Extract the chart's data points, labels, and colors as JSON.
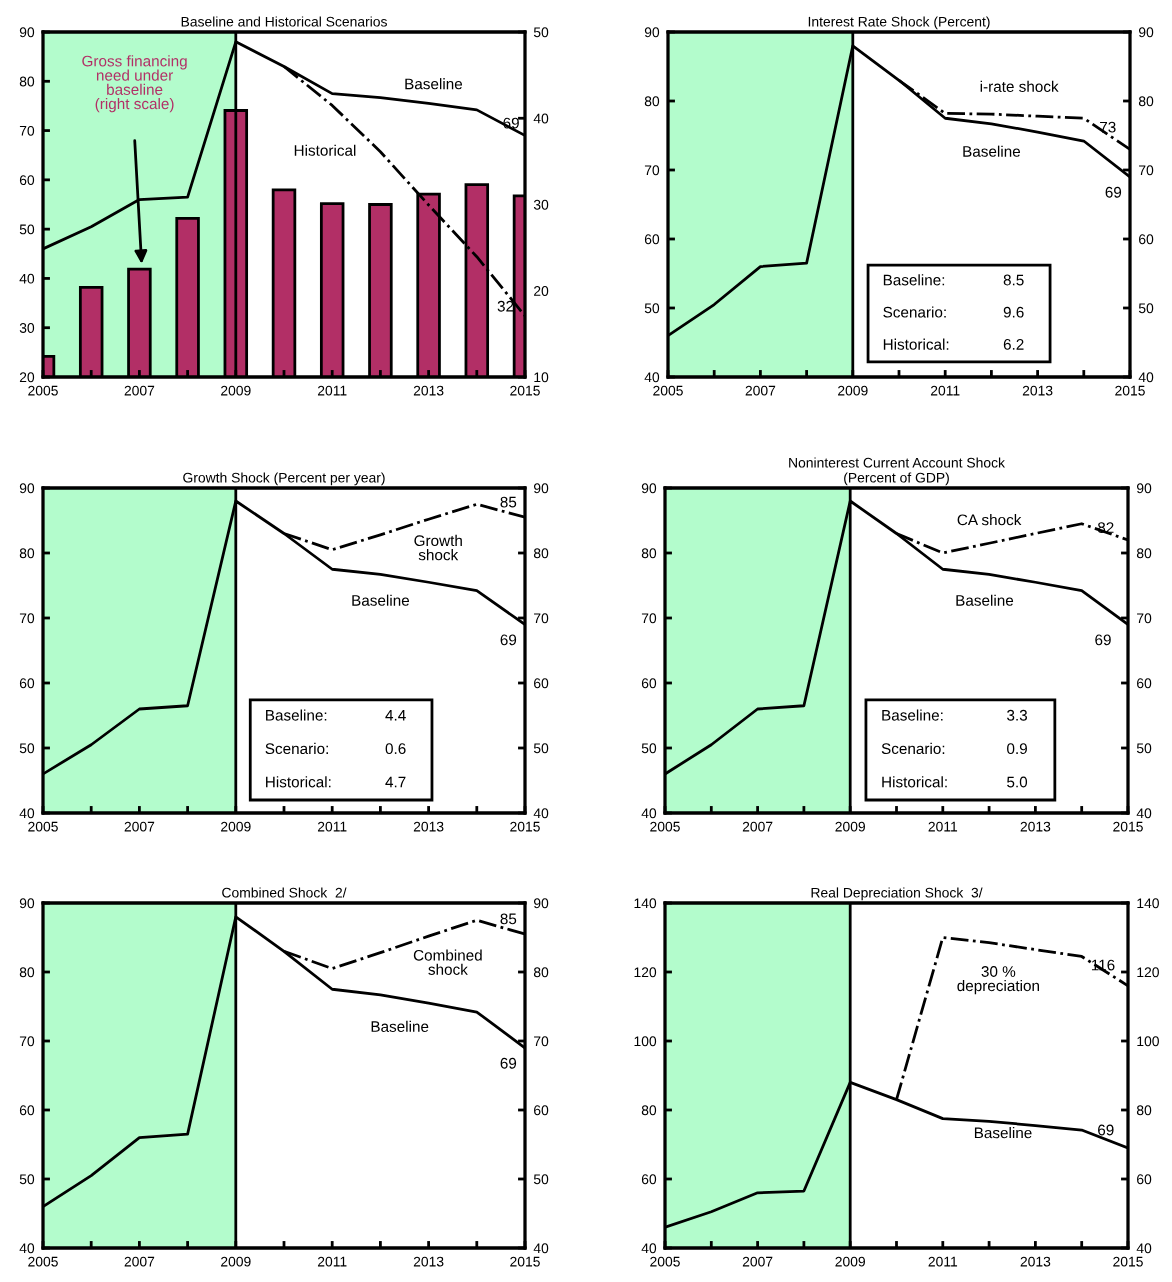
{
  "chart_data": [
    {
      "type": "line",
      "title": "Baseline and Historical Scenarios",
      "x": [
        2005,
        2006,
        2007,
        2008,
        2009,
        2010,
        2011,
        2012,
        2013,
        2014,
        2015
      ],
      "xlim": [
        2005,
        2015
      ],
      "xticks": [
        2005,
        {
          "value": 2006,
          "label": null
        },
        2007,
        {
          "value": 2008,
          "label": null
        },
        2009,
        {
          "value": 2010,
          "label": null
        },
        2011,
        {
          "value": 2012,
          "label": null
        },
        2013,
        {
          "value": 2014,
          "label": null
        },
        2015
      ],
      "ylim": [
        20,
        90
      ],
      "yticks": [
        20,
        30,
        40,
        50,
        60,
        70,
        80,
        90
      ],
      "y2lim": [
        10,
        50
      ],
      "y2ticks": [
        10,
        20,
        30,
        40,
        50
      ],
      "legend": false,
      "grid": false,
      "bands": [
        {
          "axis": "x",
          "from": 2005,
          "to": 2009,
          "color": "#b3fccc"
        }
      ],
      "ref_lines": [
        {
          "axis": "x",
          "value": 2009,
          "color": "#000000"
        }
      ],
      "series": [
        {
          "type": "bar",
          "axis": "y2",
          "name": "Gross financing\nneed under\nbaseline\n(right scale)",
          "color": "#b22f66",
          "values": [
            12.4,
            20.4,
            22.5,
            28.4,
            40.9,
            31.7,
            30.1,
            30.0,
            31.2,
            32.3,
            31.0
          ]
        },
        {
          "name": "Baseline",
          "color": "#000000",
          "line_style": "solid",
          "values": [
            46,
            50.5,
            56,
            56.5,
            88,
            83,
            77.5,
            76.7,
            75.5,
            74.2,
            69
          ],
          "value_labels": [
            null,
            null,
            null,
            null,
            null,
            null,
            null,
            null,
            null,
            null,
            "69"
          ]
        },
        {
          "name": "Historical",
          "color": "#000000",
          "line_style": "dashdot",
          "x": [
            2010,
            2011,
            2012,
            2013,
            2014,
            2015
          ],
          "values": [
            83,
            75.1,
            65.7,
            54.9,
            44.4,
            32.4
          ],
          "value_labels": [
            null,
            null,
            null,
            null,
            null,
            "32"
          ]
        }
      ]
    },
    {
      "type": "line",
      "title": "Interest Rate Shock (Percent)",
      "x": [
        2005,
        2006,
        2007,
        2008,
        2009,
        2010,
        2011,
        2012,
        2013,
        2014,
        2015
      ],
      "xlim": [
        2005,
        2015
      ],
      "xticks": [
        2005,
        {
          "value": 2006,
          "label": null
        },
        2007,
        {
          "value": 2008,
          "label": null
        },
        2009,
        {
          "value": 2010,
          "label": null
        },
        2011,
        {
          "value": 2012,
          "label": null
        },
        2013,
        {
          "value": 2014,
          "label": null
        },
        2015
      ],
      "ylim": [
        40,
        90
      ],
      "yticks": [
        40,
        50,
        60,
        70,
        80,
        90
      ],
      "y2lim": [
        40,
        90
      ],
      "y2ticks": [
        40,
        50,
        60,
        70,
        80,
        90
      ],
      "legend": false,
      "grid": false,
      "bands": [
        {
          "axis": "x",
          "from": 2005,
          "to": 2009,
          "color": "#b3fccc"
        }
      ],
      "ref_lines": [
        {
          "axis": "x",
          "value": 2009,
          "color": "#000000"
        }
      ],
      "annotations": [
        "Baseline:",
        "8.5",
        "Scenario:",
        "9.6",
        "Historical:",
        "6.2"
      ],
      "series": [
        {
          "name": "Baseline",
          "color": "#000000",
          "line_style": "solid",
          "values": [
            46,
            50.5,
            56,
            56.5,
            88,
            83,
            77.5,
            76.7,
            75.5,
            74.2,
            69
          ],
          "value_labels": [
            null,
            null,
            null,
            null,
            null,
            null,
            null,
            null,
            null,
            null,
            "69"
          ]
        },
        {
          "name": "i-rate shock",
          "color": "#000000",
          "line_style": "dashdot",
          "x": [
            2010,
            2011,
            2012,
            2013,
            2014,
            2015
          ],
          "values": [
            83,
            78.2,
            78.1,
            77.8,
            77.5,
            73
          ],
          "value_labels": [
            null,
            null,
            null,
            null,
            null,
            "73"
          ]
        }
      ]
    },
    {
      "type": "line",
      "title": "Growth Shock (Percent per year)",
      "x": [
        2005,
        2006,
        2007,
        2008,
        2009,
        2010,
        2011,
        2012,
        2013,
        2014,
        2015
      ],
      "xlim": [
        2005,
        2015
      ],
      "xticks": [
        2005,
        {
          "value": 2006,
          "label": null
        },
        2007,
        {
          "value": 2008,
          "label": null
        },
        2009,
        {
          "value": 2010,
          "label": null
        },
        2011,
        {
          "value": 2012,
          "label": null
        },
        2013,
        {
          "value": 2014,
          "label": null
        },
        2015
      ],
      "ylim": [
        40,
        90
      ],
      "yticks": [
        40,
        50,
        60,
        70,
        80,
        90
      ],
      "y2lim": [
        40,
        90
      ],
      "y2ticks": [
        40,
        50,
        60,
        70,
        80,
        90
      ],
      "legend": false,
      "grid": false,
      "bands": [
        {
          "axis": "x",
          "from": 2005,
          "to": 2009,
          "color": "#b3fccc"
        }
      ],
      "ref_lines": [
        {
          "axis": "x",
          "value": 2009,
          "color": "#000000"
        }
      ],
      "annotations": [
        "Baseline:",
        "4.4",
        "Scenario:",
        "0.6",
        "Historical:",
        "4.7"
      ],
      "series": [
        {
          "name": "Baseline",
          "color": "#000000",
          "line_style": "solid",
          "values": [
            46,
            50.5,
            56,
            56.5,
            88,
            83,
            77.5,
            76.7,
            75.5,
            74.2,
            69
          ],
          "value_labels": [
            null,
            null,
            null,
            null,
            null,
            null,
            null,
            null,
            null,
            null,
            "69"
          ]
        },
        {
          "name": "Growth\nshock",
          "color": "#000000",
          "line_style": "dashdot",
          "x": [
            2010,
            2011,
            2012,
            2013,
            2014,
            2015
          ],
          "values": [
            83,
            80.5,
            82.8,
            85.2,
            87.5,
            85.5
          ],
          "value_labels": [
            null,
            null,
            null,
            null,
            null,
            "85"
          ]
        }
      ]
    },
    {
      "type": "line",
      "title": "Noninterest Current Account Shock\n(Percent of GDP)",
      "x": [
        2005,
        2006,
        2007,
        2008,
        2009,
        2010,
        2011,
        2012,
        2013,
        2014,
        2015
      ],
      "xlim": [
        2005,
        2015
      ],
      "xticks": [
        2005,
        {
          "value": 2006,
          "label": null
        },
        2007,
        {
          "value": 2008,
          "label": null
        },
        2009,
        {
          "value": 2010,
          "label": null
        },
        2011,
        {
          "value": 2012,
          "label": null
        },
        2013,
        {
          "value": 2014,
          "label": null
        },
        2015
      ],
      "ylim": [
        40,
        90
      ],
      "yticks": [
        40,
        50,
        60,
        70,
        80,
        90
      ],
      "y2lim": [
        40,
        90
      ],
      "y2ticks": [
        40,
        50,
        60,
        70,
        80,
        90
      ],
      "legend": false,
      "grid": false,
      "bands": [
        {
          "axis": "x",
          "from": 2005,
          "to": 2009,
          "color": "#b3fccc"
        }
      ],
      "ref_lines": [
        {
          "axis": "x",
          "value": 2009,
          "color": "#000000"
        }
      ],
      "annotations": [
        "Baseline:",
        "3.3",
        "Scenario:",
        "0.9",
        "Historical:",
        "5.0"
      ],
      "series": [
        {
          "name": "Baseline",
          "color": "#000000",
          "line_style": "solid",
          "values": [
            46,
            50.5,
            56,
            56.5,
            88,
            83,
            77.5,
            76.7,
            75.5,
            74.2,
            69
          ],
          "value_labels": [
            null,
            null,
            null,
            null,
            null,
            null,
            null,
            null,
            null,
            null,
            "69"
          ]
        },
        {
          "name": "CA shock",
          "color": "#000000",
          "line_style": "dashdot",
          "x": [
            2010,
            2011,
            2012,
            2013,
            2014,
            2015
          ],
          "values": [
            83,
            80,
            81.5,
            83,
            84.5,
            82
          ],
          "value_labels": [
            null,
            null,
            null,
            null,
            null,
            "82"
          ]
        }
      ]
    },
    {
      "type": "line",
      "title": "Combined Shock  2/",
      "x": [
        2005,
        2006,
        2007,
        2008,
        2009,
        2010,
        2011,
        2012,
        2013,
        2014,
        2015
      ],
      "xlim": [
        2005,
        2015
      ],
      "xticks": [
        2005,
        {
          "value": 2006,
          "label": null
        },
        2007,
        {
          "value": 2008,
          "label": null
        },
        2009,
        {
          "value": 2010,
          "label": null
        },
        2011,
        {
          "value": 2012,
          "label": null
        },
        2013,
        {
          "value": 2014,
          "label": null
        },
        2015
      ],
      "ylim": [
        40,
        90
      ],
      "yticks": [
        40,
        50,
        60,
        70,
        80,
        90
      ],
      "y2lim": [
        40,
        90
      ],
      "y2ticks": [
        40,
        50,
        60,
        70,
        80,
        90
      ],
      "legend": false,
      "grid": false,
      "bands": [
        {
          "axis": "x",
          "from": 2005,
          "to": 2009,
          "color": "#b3fccc"
        }
      ],
      "ref_lines": [
        {
          "axis": "x",
          "value": 2009,
          "color": "#000000"
        }
      ],
      "series": [
        {
          "name": "Baseline",
          "color": "#000000",
          "line_style": "solid",
          "values": [
            46,
            50.5,
            56,
            56.5,
            88,
            83,
            77.5,
            76.7,
            75.5,
            74.2,
            69
          ],
          "value_labels": [
            null,
            null,
            null,
            null,
            null,
            null,
            null,
            null,
            null,
            null,
            "69"
          ]
        },
        {
          "name": "Combined\nshock",
          "color": "#000000",
          "line_style": "dashdot",
          "x": [
            2010,
            2011,
            2012,
            2013,
            2014,
            2015
          ],
          "values": [
            83,
            80.5,
            82.8,
            85.2,
            87.5,
            85.5
          ],
          "value_labels": [
            null,
            null,
            null,
            null,
            null,
            "85"
          ]
        }
      ]
    },
    {
      "type": "line",
      "title": "Real Depreciation Shock  3/",
      "x": [
        2005,
        2006,
        2007,
        2008,
        2009,
        2010,
        2011,
        2012,
        2013,
        2014,
        2015
      ],
      "xlim": [
        2005,
        2015
      ],
      "xticks": [
        2005,
        {
          "value": 2006,
          "label": null
        },
        2007,
        {
          "value": 2008,
          "label": null
        },
        2009,
        {
          "value": 2010,
          "label": null
        },
        2011,
        {
          "value": 2012,
          "label": null
        },
        2013,
        {
          "value": 2014,
          "label": null
        },
        2015
      ],
      "ylim": [
        40,
        140
      ],
      "yticks": [
        40,
        60,
        80,
        100,
        120,
        140
      ],
      "y2lim": [
        40,
        140
      ],
      "y2ticks": [
        40,
        60,
        80,
        100,
        120,
        140
      ],
      "legend": false,
      "grid": false,
      "bands": [
        {
          "axis": "x",
          "from": 2005,
          "to": 2009,
          "color": "#b3fccc"
        }
      ],
      "ref_lines": [
        {
          "axis": "x",
          "value": 2009,
          "color": "#000000"
        }
      ],
      "series": [
        {
          "name": "Baseline",
          "color": "#000000",
          "line_style": "solid",
          "values": [
            46,
            50.5,
            56,
            56.5,
            88,
            83,
            77.5,
            76.7,
            75.5,
            74.2,
            69
          ],
          "value_labels": [
            null,
            null,
            null,
            null,
            null,
            null,
            null,
            null,
            null,
            null,
            "69"
          ]
        },
        {
          "name": "30 %\ndepreciation",
          "color": "#000000",
          "line_style": "dashdot",
          "x": [
            2010,
            2011,
            2012,
            2013,
            2014,
            2015
          ],
          "values": [
            83,
            130,
            128.5,
            126.5,
            124.5,
            116
          ],
          "value_labels": [
            null,
            null,
            null,
            null,
            null,
            "116"
          ]
        }
      ]
    }
  ]
}
